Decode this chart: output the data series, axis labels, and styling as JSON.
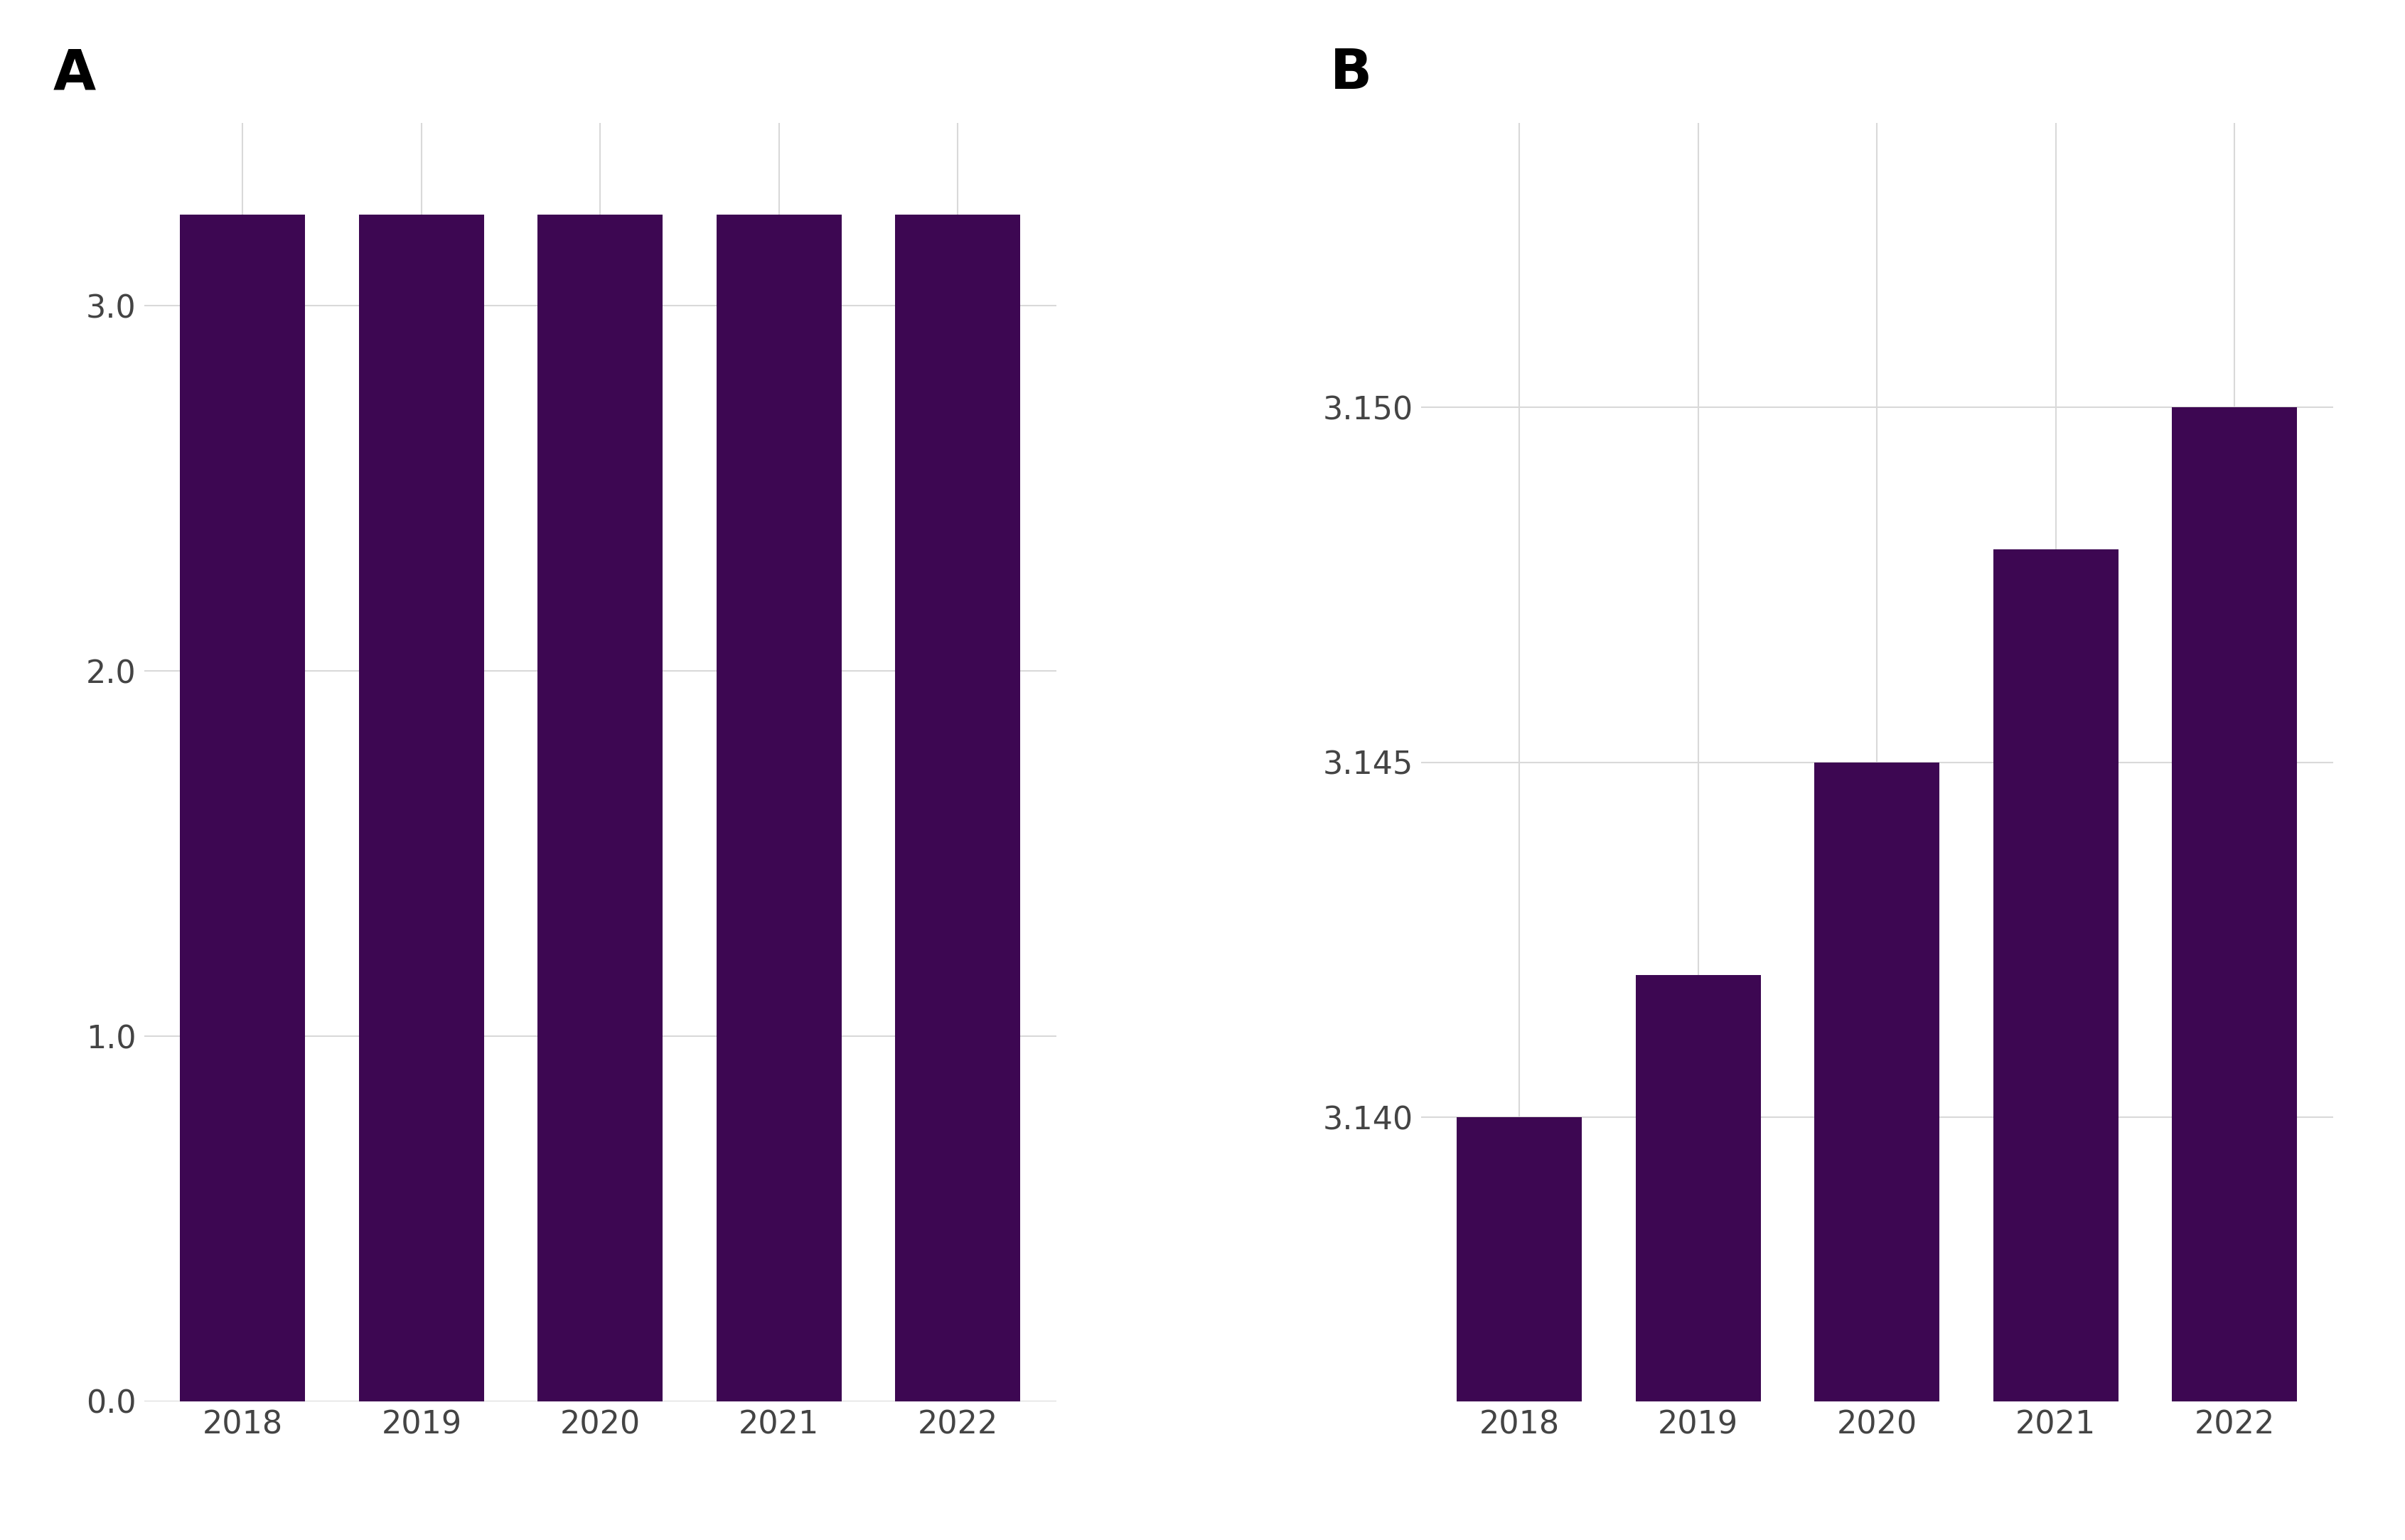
{
  "categories": [
    "2018",
    "2019",
    "2020",
    "2021",
    "2022"
  ],
  "values_A": [
    3.25,
    3.25,
    3.25,
    3.25,
    3.25
  ],
  "values_B": [
    3.14,
    3.142,
    3.145,
    3.148,
    3.15
  ],
  "bar_color": "#3d0752",
  "background_color": "#ffffff",
  "grid_color": "#d9d9d9",
  "panel_A_label": "A",
  "panel_B_label": "B",
  "A_ylim": [
    0,
    3.5
  ],
  "A_yticks": [
    0.0,
    1.0,
    2.0,
    3.0
  ],
  "B_ylim": [
    3.136,
    3.154
  ],
  "B_yticks": [
    3.14,
    3.145,
    3.15
  ],
  "tick_fontsize": 32,
  "panel_label_fontsize": 56,
  "bar_width": 0.7
}
